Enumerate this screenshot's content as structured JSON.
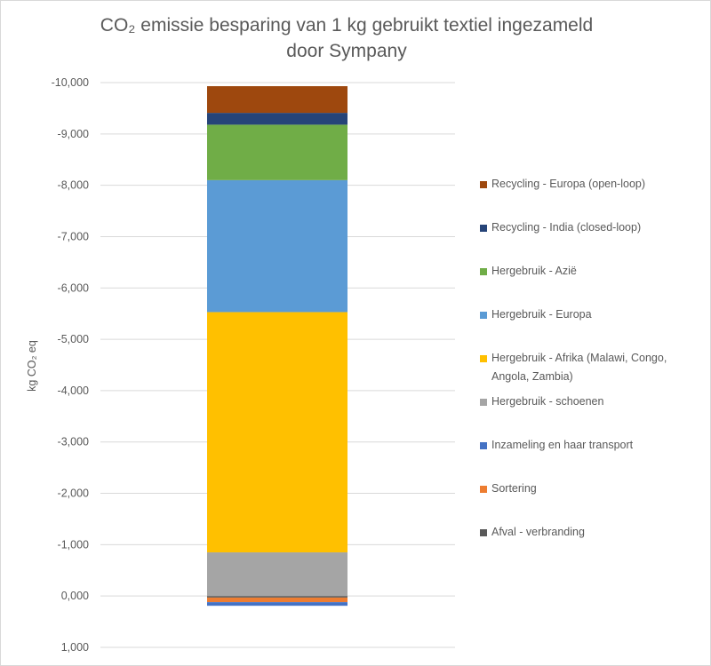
{
  "chart_data": {
    "type": "bar",
    "stacked": true,
    "title": "CO₂ emissie besparing van 1 kg gebruikt textiel ingezameld door Sympany",
    "title_lines": [
      "CO₂ emissie besparing van 1 kg gebruikt textiel ingezameld",
      "door Sympany"
    ],
    "xlabel": "",
    "ylabel": "kg CO₂ eq",
    "ylim": [
      1.0,
      -10.0
    ],
    "y_axis_reversed": true,
    "yticks": [
      -10,
      -9,
      -8,
      -7,
      -6,
      -5,
      -4,
      -3,
      -2,
      -1,
      0,
      1
    ],
    "ytick_labels": [
      "-10,000",
      "-9,000",
      "-8,000",
      "-7,000",
      "-6,000",
      "-5,000",
      "-4,000",
      "-3,000",
      "-2,000",
      "-1,000",
      "0,000",
      "1,000"
    ],
    "grid": true,
    "legend_position": "right",
    "categories": [
      ""
    ],
    "series": [
      {
        "name": "Afval - verbranding",
        "values": [
          0.03
        ],
        "color": "#595959"
      },
      {
        "name": "Sortering",
        "values": [
          0.09
        ],
        "color": "#ed7d31"
      },
      {
        "name": "Inzameling en haar transport",
        "values": [
          0.07
        ],
        "color": "#4472c4"
      },
      {
        "name": "Hergebruik - schoenen",
        "values": [
          -0.85
        ],
        "color": "#a5a5a5"
      },
      {
        "name": "Hergebruik - Afrika (Malawi, Congo, Angola, Zambia)",
        "values": [
          -4.68
        ],
        "color": "#ffc000"
      },
      {
        "name": "Hergebruik - Europa",
        "values": [
          -2.57
        ],
        "color": "#5b9bd5"
      },
      {
        "name": "Hergebruik - Azië",
        "values": [
          -1.08
        ],
        "color": "#70ad47"
      },
      {
        "name": "Recycling - India (closed-loop)",
        "values": [
          -0.23
        ],
        "color": "#264478"
      },
      {
        "name": "Recycling - Europa (open-loop)",
        "values": [
          -0.52
        ],
        "color": "#9e480e"
      }
    ],
    "legend_entries_top_to_bottom": [
      "Recycling - Europa (open-loop)",
      "Recycling - India (closed-loop)",
      "Hergebruik - Azië",
      "Hergebruik - Europa",
      "Hergebruik - Afrika (Malawi, Congo, Angola, Zambia)",
      "Hergebruik - schoenen",
      "Inzameling en haar transport",
      "Sortering",
      "Afval - verbranding"
    ]
  },
  "legend_labels": [
    "Recycling - Europa (open-loop)",
    "Recycling - India (closed-loop)",
    "Hergebruik - Azië",
    "Hergebruik - Europa",
    "Hergebruik - Afrika (Malawi, Congo, Angola, Zambia)",
    "Hergebruik - schoenen",
    "Inzameling en haar transport",
    "Sortering",
    "Afval - verbranding"
  ]
}
